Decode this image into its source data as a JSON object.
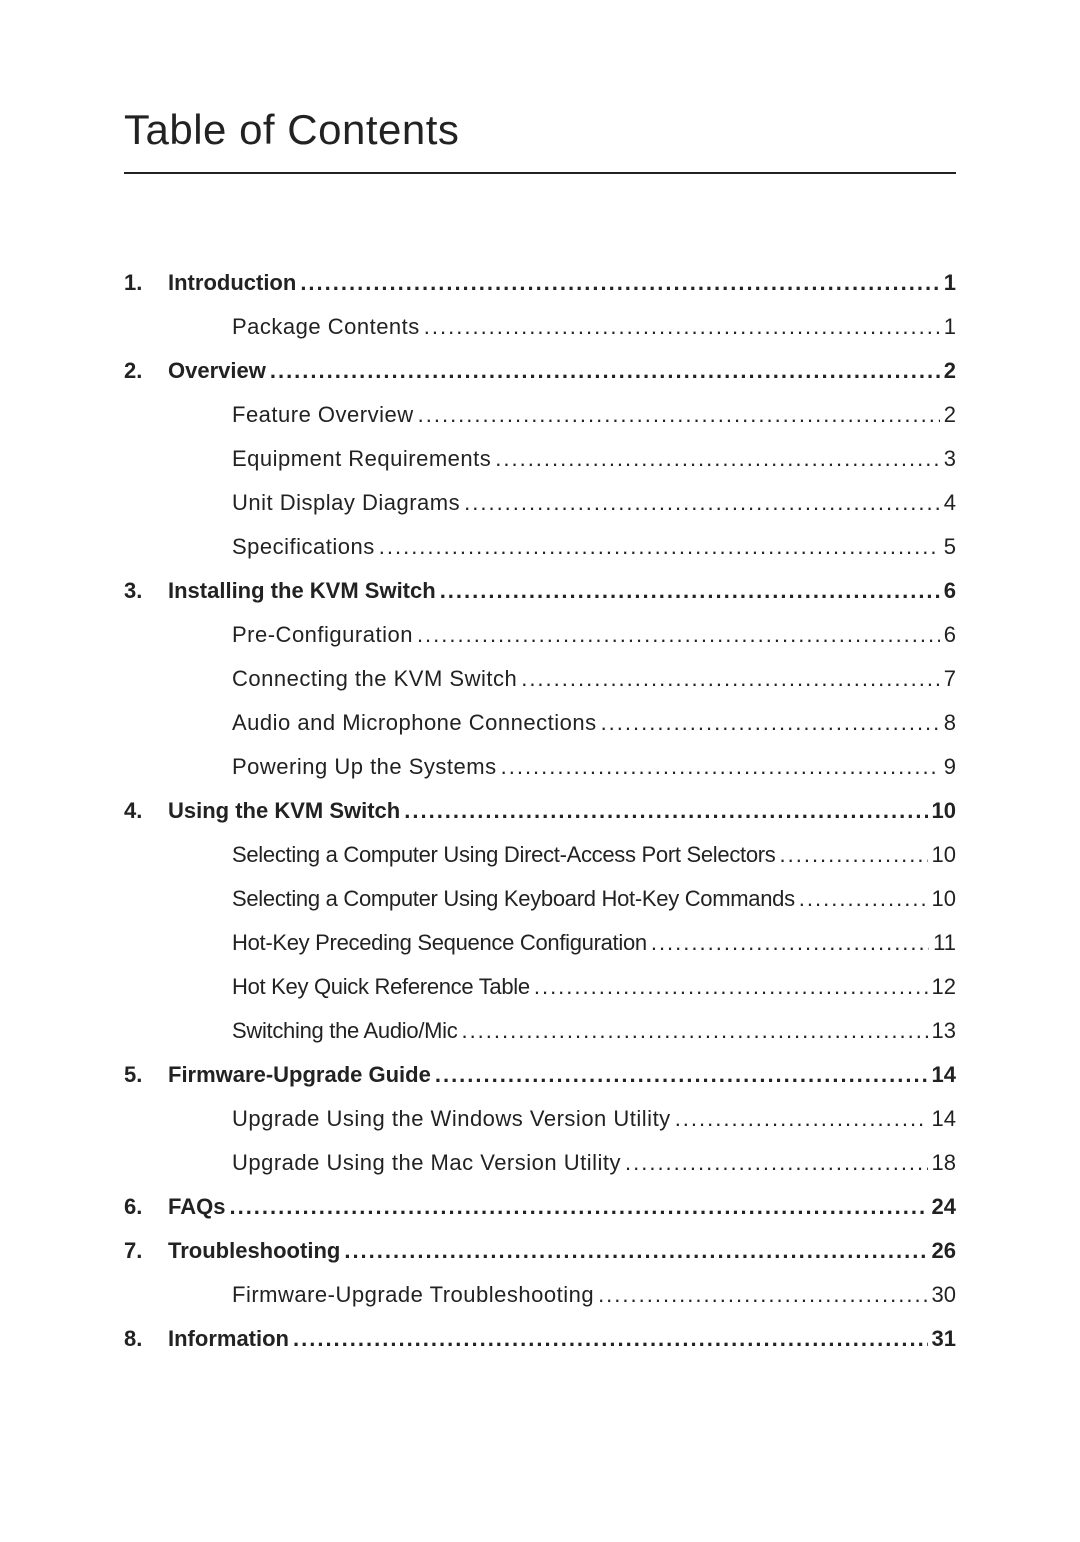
{
  "title": "Table of Contents",
  "colors": {
    "text": "#222222",
    "background": "#ffffff",
    "rule": "#222222"
  },
  "typography": {
    "title_fontsize": 42,
    "title_weight": 400,
    "chapter_fontsize": 22,
    "chapter_weight": 700,
    "sub_fontsize": 22,
    "sub_weight": 400,
    "font_family": "Arial"
  },
  "toc": [
    {
      "num": "1.",
      "label": "Introduction",
      "page": "1",
      "tight": false,
      "subs": [
        {
          "label": "Package Contents",
          "page": "1",
          "tight": false
        }
      ]
    },
    {
      "num": "2.",
      "label": "Overview",
      "page": "2",
      "tight": false,
      "subs": [
        {
          "label": "Feature Overview",
          "page": "2",
          "tight": false
        },
        {
          "label": "Equipment Requirements",
          "page": "3",
          "tight": false
        },
        {
          "label": "Unit Display Diagrams",
          "page": "4",
          "tight": false
        },
        {
          "label": "Specifications",
          "page": "5",
          "tight": false
        }
      ]
    },
    {
      "num": "3.",
      "label": "Installing the KVM Switch",
      "page": "6",
      "tight": false,
      "subs": [
        {
          "label": "Pre-Configuration",
          "page": "6",
          "tight": false
        },
        {
          "label": "Connecting the KVM Switch",
          "page": "7",
          "tight": false
        },
        {
          "label": "Audio and Microphone Connections",
          "page": "8",
          "tight": false
        },
        {
          "label": "Powering Up the Systems",
          "page": "9",
          "tight": false
        }
      ]
    },
    {
      "num": "4.",
      "label": "Using the KVM Switch",
      "page": "10",
      "tight": false,
      "subs": [
        {
          "label": "Selecting a Computer Using Direct-Access Port Selectors",
          "page": "10",
          "tight": true
        },
        {
          "label": "Selecting a Computer Using Keyboard Hot-Key Commands",
          "page": "10",
          "tight": true
        },
        {
          "label": "Hot-Key Preceding Sequence Configuration",
          "page": "11",
          "tight": true
        },
        {
          "label": "Hot Key Quick Reference Table",
          "page": "12",
          "tight": true
        },
        {
          "label": "Switching the Audio/Mic",
          "page": "13",
          "tight": true
        }
      ]
    },
    {
      "num": "5.",
      "label": "Firmware-Upgrade Guide",
      "page": "14",
      "tight": false,
      "subs": [
        {
          "label": "Upgrade Using the Windows Version Utility",
          "page": "14",
          "tight": false
        },
        {
          "label": "Upgrade Using the Mac Version Utility",
          "page": "18",
          "tight": false
        }
      ]
    },
    {
      "num": "6.",
      "label": "FAQs",
      "page": "24",
      "tight": false,
      "subs": []
    },
    {
      "num": "7.",
      "label": "Troubleshooting",
      "page": "26",
      "tight": false,
      "subs": [
        {
          "label": "Firmware-Upgrade Troubleshooting",
          "page": "30",
          "tight": false
        }
      ]
    },
    {
      "num": "8.",
      "label": "Information",
      "page": "31",
      "tight": false,
      "subs": []
    }
  ]
}
